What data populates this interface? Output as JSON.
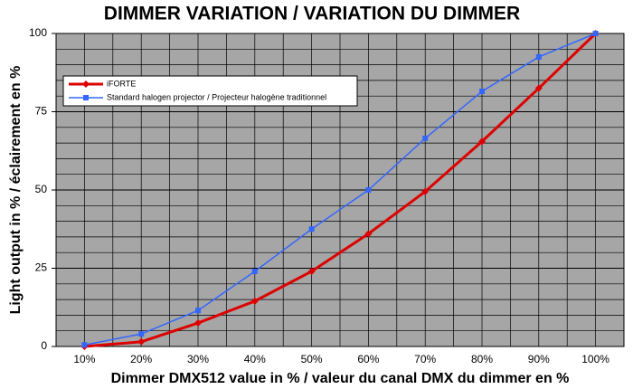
{
  "chart_data": {
    "type": "line",
    "title": "DIMMER VARIATION / VARIATION DU DIMMER",
    "x_label": "Dimmer DMX512 value in % / valeur du canal DMX du dimmer en %",
    "y_label": "Light output in % / éclairement en %",
    "categories": [
      "10%",
      "20%",
      "30%",
      "40%",
      "50%",
      "60%",
      "70%",
      "80%",
      "90%",
      "100%"
    ],
    "series": [
      {
        "name": "iFORTE",
        "color": "#dd0000",
        "marker": "diamond",
        "values": [
          0,
          1.5,
          7.5,
          14.5,
          24,
          36,
          49.5,
          65.5,
          82.5,
          100
        ]
      },
      {
        "name": "Standard halogen projector / Projecteur halogène traditionnel",
        "color": "#3366ff",
        "marker": "square",
        "values": [
          0.5,
          4,
          11.5,
          24,
          37.5,
          50,
          66.5,
          81.5,
          92.5,
          100
        ]
      }
    ],
    "ylim": [
      0,
      100
    ],
    "yticks": [
      0,
      25,
      50,
      75,
      100
    ],
    "grid": true,
    "legend": "upper left"
  }
}
